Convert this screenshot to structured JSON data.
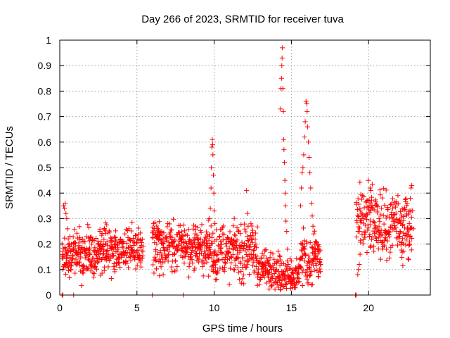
{
  "chart_data": {
    "type": "scatter",
    "title": "Day 266 of 2023, SRMTID for receiver tuva",
    "xlabel": "GPS time / hours",
    "ylabel": "SRMTID / TECUs",
    "xlim": [
      0,
      24
    ],
    "ylim": [
      0,
      1
    ],
    "xticks": [
      0,
      5,
      10,
      15,
      20
    ],
    "yticks": [
      0,
      0.1,
      0.2,
      0.3,
      0.4,
      0.5,
      0.6,
      0.7,
      0.8,
      0.9,
      1
    ],
    "grid": true,
    "marker": "+",
    "series": [
      {
        "name": "SRMTID",
        "color": "#ff0000",
        "segments": [
          {
            "x_range": [
              0.15,
              2.5
            ],
            "base": 0.16,
            "spread": 0.04,
            "step": 0.02
          },
          {
            "x_range": [
              2.5,
              5.4
            ],
            "base": 0.18,
            "spread": 0.045,
            "step": 0.02
          },
          {
            "x_range": [
              6.0,
              9.5
            ],
            "base": 0.19,
            "spread": 0.045,
            "step": 0.02
          },
          {
            "x_range": [
              9.5,
              12.8
            ],
            "base": 0.17,
            "spread": 0.05,
            "step": 0.02
          },
          {
            "x_range": [
              12.8,
              14.3
            ],
            "base": 0.1,
            "spread": 0.035,
            "step": 0.02
          },
          {
            "x_range": [
              14.3,
              15.5
            ],
            "base": 0.08,
            "spread": 0.03,
            "step": 0.02
          },
          {
            "x_range": [
              15.5,
              16.9
            ],
            "base": 0.14,
            "spread": 0.05,
            "step": 0.02
          },
          {
            "x_range": [
              19.2,
              20.5
            ],
            "base": 0.28,
            "spread": 0.06,
            "step": 0.02
          },
          {
            "x_range": [
              20.5,
              22.8
            ],
            "base": 0.27,
            "spread": 0.06,
            "step": 0.02
          }
        ],
        "points": [
          {
            "x": 0.2,
            "y": 0.1
          },
          {
            "x": 0.25,
            "y": 0.35
          },
          {
            "x": 0.3,
            "y": 0.34
          },
          {
            "x": 0.35,
            "y": 0.36
          },
          {
            "x": 0.4,
            "y": 0.32
          },
          {
            "x": 0.45,
            "y": 0.3
          },
          {
            "x": 0.5,
            "y": 0.26
          },
          {
            "x": 0.55,
            "y": 0.22
          },
          {
            "x": 0.6,
            "y": 0.19
          },
          {
            "x": 0.65,
            "y": 0.23
          },
          {
            "x": 0.7,
            "y": 0.17
          },
          {
            "x": 0.3,
            "y": 0.12
          },
          {
            "x": 9.7,
            "y": 0.3
          },
          {
            "x": 9.75,
            "y": 0.34
          },
          {
            "x": 9.8,
            "y": 0.42
          },
          {
            "x": 9.82,
            "y": 0.5
          },
          {
            "x": 9.85,
            "y": 0.58
          },
          {
            "x": 9.88,
            "y": 0.61
          },
          {
            "x": 9.9,
            "y": 0.59
          },
          {
            "x": 9.92,
            "y": 0.55
          },
          {
            "x": 9.95,
            "y": 0.47
          },
          {
            "x": 9.98,
            "y": 0.4
          },
          {
            "x": 10.0,
            "y": 0.33
          },
          {
            "x": 10.05,
            "y": 0.28
          },
          {
            "x": 12.1,
            "y": 0.41
          },
          {
            "x": 12.15,
            "y": 0.32
          },
          {
            "x": 12.2,
            "y": 0.27
          },
          {
            "x": 14.3,
            "y": 0.73
          },
          {
            "x": 14.33,
            "y": 0.81
          },
          {
            "x": 14.36,
            "y": 0.85
          },
          {
            "x": 14.38,
            "y": 0.9
          },
          {
            "x": 14.4,
            "y": 0.93
          },
          {
            "x": 14.42,
            "y": 0.97
          },
          {
            "x": 14.45,
            "y": 0.81
          },
          {
            "x": 14.48,
            "y": 0.72
          },
          {
            "x": 14.5,
            "y": 0.61
          },
          {
            "x": 14.52,
            "y": 0.57
          },
          {
            "x": 14.55,
            "y": 0.52
          },
          {
            "x": 14.58,
            "y": 0.45
          },
          {
            "x": 14.6,
            "y": 0.4
          },
          {
            "x": 14.62,
            "y": 0.35
          },
          {
            "x": 14.65,
            "y": 0.29
          },
          {
            "x": 14.7,
            "y": 0.25
          },
          {
            "x": 14.75,
            "y": 0.18
          },
          {
            "x": 14.8,
            "y": 0.12
          },
          {
            "x": 15.6,
            "y": 0.35
          },
          {
            "x": 15.65,
            "y": 0.42
          },
          {
            "x": 15.7,
            "y": 0.48
          },
          {
            "x": 15.75,
            "y": 0.5
          },
          {
            "x": 15.8,
            "y": 0.55
          },
          {
            "x": 15.85,
            "y": 0.62
          },
          {
            "x": 15.9,
            "y": 0.68
          },
          {
            "x": 15.95,
            "y": 0.76
          },
          {
            "x": 16.0,
            "y": 0.75
          },
          {
            "x": 16.02,
            "y": 0.72
          },
          {
            "x": 16.05,
            "y": 0.66
          },
          {
            "x": 16.1,
            "y": 0.6
          },
          {
            "x": 16.15,
            "y": 0.54
          },
          {
            "x": 16.2,
            "y": 0.48
          },
          {
            "x": 16.25,
            "y": 0.42
          },
          {
            "x": 16.3,
            "y": 0.36
          },
          {
            "x": 16.35,
            "y": 0.31
          },
          {
            "x": 16.4,
            "y": 0.27
          },
          {
            "x": 16.45,
            "y": 0.24
          },
          {
            "x": 16.5,
            "y": 0.2
          },
          {
            "x": 16.55,
            "y": 0.17
          },
          {
            "x": 16.6,
            "y": 0.14
          },
          {
            "x": 19.3,
            "y": 0.08
          },
          {
            "x": 19.35,
            "y": 0.1
          },
          {
            "x": 19.4,
            "y": 0.12
          },
          {
            "x": 19.45,
            "y": 0.16
          },
          {
            "x": 20.1,
            "y": 0.42
          },
          {
            "x": 20.15,
            "y": 0.41
          },
          {
            "x": 20.2,
            "y": 0.37
          },
          {
            "x": 22.8,
            "y": 0.43
          },
          {
            "x": 22.75,
            "y": 0.42
          },
          {
            "x": 22.7,
            "y": 0.38
          },
          {
            "x": 22.85,
            "y": 0.33
          },
          {
            "x": 22.9,
            "y": 0.26
          },
          {
            "x": 22.6,
            "y": 0.14
          },
          {
            "x": 22.65,
            "y": 0.2
          },
          {
            "x": 0.15,
            "y": 0.0
          },
          {
            "x": 0.2,
            "y": 0.0
          },
          {
            "x": 0.9,
            "y": 0.0
          },
          {
            "x": 6.0,
            "y": 0.0
          },
          {
            "x": 8.0,
            "y": 0.0
          },
          {
            "x": 19.15,
            "y": 0.0
          },
          {
            "x": 19.2,
            "y": 0.0
          }
        ]
      }
    ]
  }
}
